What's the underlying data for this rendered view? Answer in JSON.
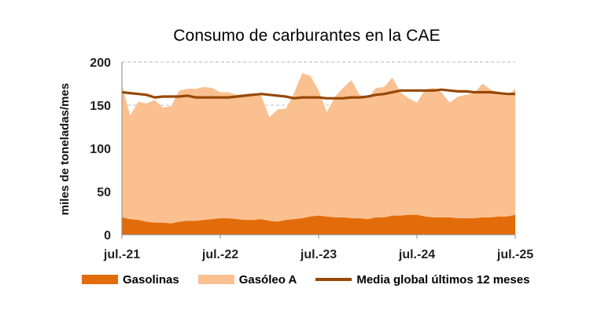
{
  "chart_data": {
    "type": "area",
    "title": "Consumo de carburantes en la CAE",
    "ylabel": "miles de toneladas/mes",
    "xlabel": "",
    "ylim": [
      0,
      200
    ],
    "yticks": [
      0,
      50,
      100,
      150,
      200
    ],
    "x_tick_labels": [
      "jul.-21",
      "jul.-22",
      "jul.-23",
      "jul.-24",
      "jul.-25"
    ],
    "x_tick_index": [
      0,
      12,
      24,
      36,
      48
    ],
    "grid": "horizontal dashed",
    "legend_position": "bottom",
    "x": [
      "jul.-21",
      "ago.-21",
      "sep.-21",
      "oct.-21",
      "nov.-21",
      "dic.-21",
      "ene.-22",
      "feb.-22",
      "mar.-22",
      "abr.-22",
      "may.-22",
      "jun.-22",
      "jul.-22",
      "ago.-22",
      "sep.-22",
      "oct.-22",
      "nov.-22",
      "dic.-22",
      "ene.-23",
      "feb.-23",
      "mar.-23",
      "abr.-23",
      "may.-23",
      "jun.-23",
      "jul.-23",
      "ago.-23",
      "sep.-23",
      "oct.-23",
      "nov.-23",
      "dic.-23",
      "ene.-24",
      "feb.-24",
      "mar.-24",
      "abr.-24",
      "may.-24",
      "jun.-24",
      "jul.-24",
      "ago.-24",
      "sep.-24",
      "oct.-24",
      "nov.-24",
      "dic.-24",
      "ene.-25",
      "feb.-25",
      "mar.-25",
      "abr.-25",
      "may.-25",
      "jun.-25",
      "jul.-25"
    ],
    "series": [
      {
        "name": "Gasolinas",
        "type": "area",
        "color": "#E36C0A",
        "values": [
          20,
          18,
          17,
          15,
          14,
          14,
          13,
          15,
          16,
          16,
          17,
          18,
          19,
          19,
          18,
          17,
          17,
          18,
          16,
          15,
          17,
          18,
          19,
          21,
          22,
          21,
          20,
          20,
          19,
          19,
          18,
          20,
          20,
          22,
          22,
          23,
          23,
          21,
          20,
          20,
          20,
          19,
          19,
          19,
          20,
          20,
          21,
          21,
          23
        ]
      },
      {
        "name": "Gasóleo A",
        "type": "area",
        "color": "#FAC090",
        "values": [
          153,
          120,
          137,
          137,
          142,
          133,
          136,
          152,
          153,
          153,
          154,
          152,
          146,
          146,
          144,
          146,
          147,
          143,
          120,
          130,
          129,
          146,
          168,
          163,
          145,
          121,
          140,
          150,
          160,
          143,
          140,
          150,
          151,
          160,
          143,
          135,
          130,
          147,
          150,
          145,
          133,
          141,
          143,
          145,
          155,
          148,
          143,
          140,
          146
        ]
      },
      {
        "name": "Media global últimos 12 meses",
        "type": "line",
        "color": "#974806",
        "values": [
          165,
          164,
          163,
          162,
          159,
          160,
          160,
          160,
          161,
          159,
          159,
          159,
          159,
          159,
          160,
          161,
          162,
          163,
          162,
          161,
          160,
          158,
          159,
          159,
          159,
          158,
          158,
          158,
          159,
          159,
          160,
          162,
          163,
          165,
          167,
          167,
          167,
          167,
          167,
          168,
          167,
          166,
          166,
          165,
          165,
          165,
          164,
          163,
          163
        ]
      }
    ]
  }
}
